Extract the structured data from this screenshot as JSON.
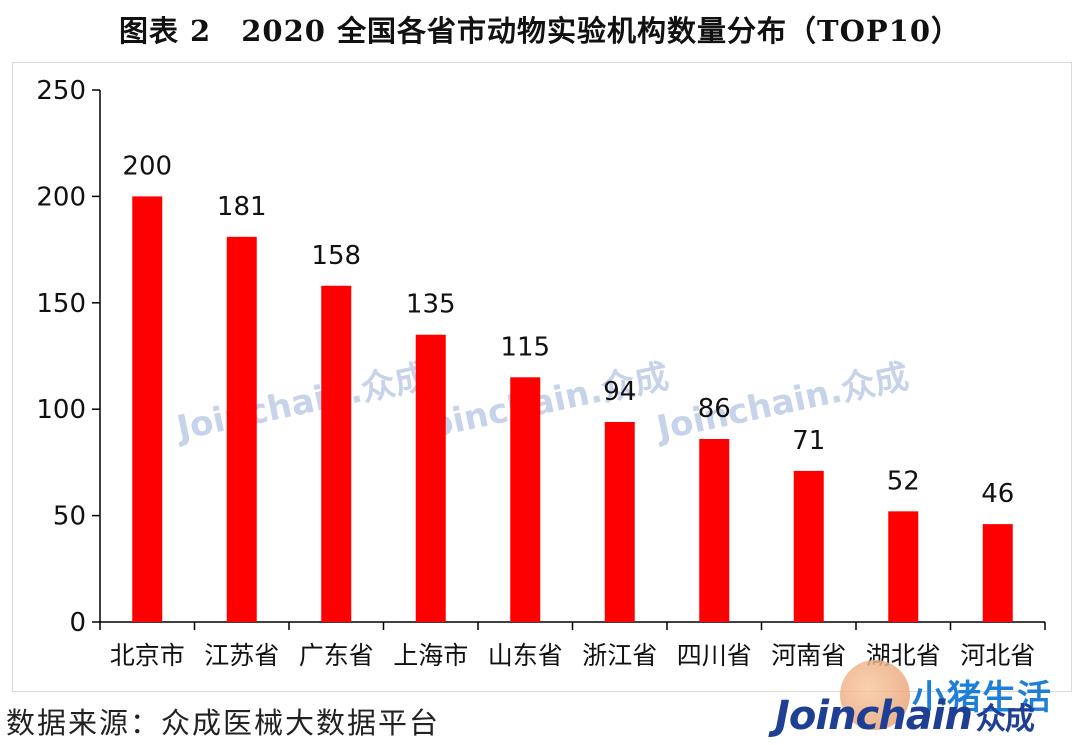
{
  "chart_data": {
    "type": "bar",
    "title": "图表 2　2020 全国各省市动物实验机构数量分布（TOP10）",
    "categories": [
      "北京市",
      "江苏省",
      "广东省",
      "上海市",
      "山东省",
      "浙江省",
      "四川省",
      "河南省",
      "湖北省",
      "河北省"
    ],
    "values": [
      200,
      181,
      158,
      135,
      115,
      94,
      86,
      71,
      52,
      46
    ],
    "ylim": [
      0,
      250
    ],
    "yticks": [
      0,
      50,
      100,
      150,
      200,
      250
    ],
    "grid": false,
    "legend": "none",
    "data_labels": true,
    "bar_color": "#ff0000"
  },
  "source_text": "数据来源：众成医械大数据平台",
  "watermarks": [
    "Joinchain.众成",
    "Joinchain.众成",
    "Joinchain.众成"
  ],
  "brand": {
    "logo_text": "Joinchain",
    "logo_zh": "众成",
    "badge_text": "小猪生活"
  },
  "colors": {
    "bar": "#ff0000",
    "axis": "#000000",
    "watermark": "#c7d3ea",
    "brand": "#1e3f94"
  }
}
